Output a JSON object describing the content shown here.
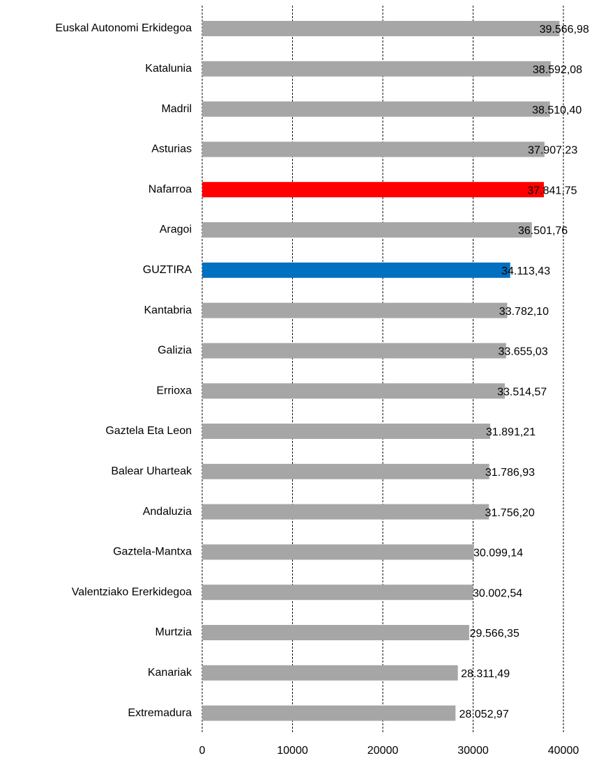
{
  "chart_data": {
    "type": "barh",
    "categories": [
      "Euskal Autonomi Erkidegoa",
      "Katalunia",
      "Madril",
      "Asturias",
      "Nafarroa",
      "Aragoi",
      "GUZTIRA",
      "Kantabria",
      "Galizia",
      "Errioxa",
      "Gaztela Eta Leon",
      "Balear Uharteak",
      "Andaluzia",
      "Gaztela-Mantxa",
      "Valentziako Ererkidegoa",
      "Murtzia",
      "Kanariak",
      "Extremadura"
    ],
    "values": [
      39566.98,
      38592.08,
      38510.4,
      37907.23,
      37841.75,
      36501.76,
      34113.43,
      33782.1,
      33655.03,
      33514.57,
      31891.21,
      31786.93,
      31756.2,
      30099.14,
      30002.54,
      29566.35,
      28311.49,
      28052.97
    ],
    "value_labels": [
      "39.566,98",
      "38.592,08",
      "38.510,40",
      "37.907,23",
      "37.841,75",
      "36.501,76",
      "34.113,43",
      "33.782,10",
      "33.655,03",
      "33.514,57",
      "31.891,21",
      "31.786,93",
      "31.756,20",
      "30.099,14",
      "30.002,54",
      "29.566,35",
      "28.311,49",
      "28.052,97"
    ],
    "colors": [
      "#a6a6a6",
      "#a6a6a6",
      "#a6a6a6",
      "#a6a6a6",
      "#ff0000",
      "#a6a6a6",
      "#0070c0",
      "#a6a6a6",
      "#a6a6a6",
      "#a6a6a6",
      "#a6a6a6",
      "#a6a6a6",
      "#a6a6a6",
      "#a6a6a6",
      "#a6a6a6",
      "#a6a6a6",
      "#a6a6a6",
      "#a6a6a6"
    ],
    "xlim": [
      0,
      40000
    ],
    "xticks": [
      0,
      10000,
      20000,
      30000,
      40000
    ],
    "grid": true
  }
}
